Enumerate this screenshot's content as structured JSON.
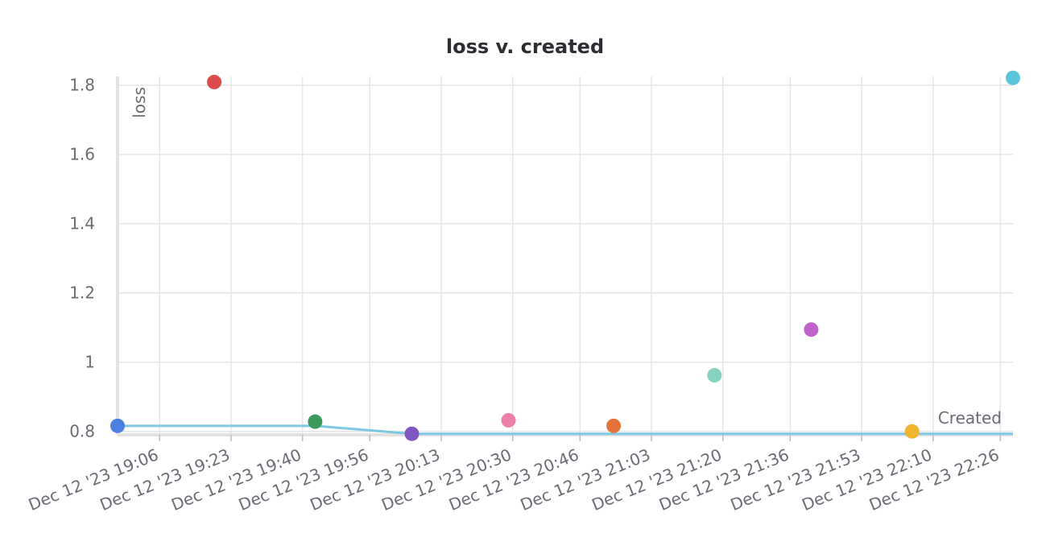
{
  "chart_data": {
    "type": "scatter",
    "title": "loss v. created",
    "xlabel": "Created",
    "ylabel": "loss",
    "x": [
      "2023-12-12T18:56",
      "2023-12-12T19:19",
      "2023-12-12T19:43",
      "2023-12-12T20:06",
      "2023-12-12T20:29",
      "2023-12-12T20:54",
      "2023-12-12T21:18",
      "2023-12-12T21:41",
      "2023-12-12T22:05",
      "2023-12-12T22:29"
    ],
    "values": [
      0.816,
      1.809,
      0.828,
      0.793,
      0.832,
      0.816,
      0.962,
      1.094,
      0.8,
      1.821
    ],
    "colors": [
      "#4c7fe0",
      "#dc4a4a",
      "#3d9a5d",
      "#7e57c2",
      "#ec7fa8",
      "#e3733a",
      "#87d1c0",
      "#c063cc",
      "#f0b62f",
      "#58c5d8"
    ],
    "line": {
      "color": "#7ec8e3",
      "x": [
        "2023-12-12T18:56",
        "2023-12-12T19:43",
        "2023-12-12T20:06",
        "2023-12-12T22:29"
      ],
      "values": [
        0.816,
        0.816,
        0.793,
        0.793
      ]
    },
    "xlim": [
      "2023-12-12T18:56",
      "2023-12-12T22:29"
    ],
    "xticks": [
      {
        "value": "2023-12-12T19:06",
        "label": "Dec 12 '23 19:06"
      },
      {
        "value": "2023-12-12T19:23",
        "label": "Dec 12 '23 19:23"
      },
      {
        "value": "2023-12-12T19:40",
        "label": "Dec 12 '23 19:40"
      },
      {
        "value": "2023-12-12T19:56",
        "label": "Dec 12 '23 19:56"
      },
      {
        "value": "2023-12-12T20:13",
        "label": "Dec 12 '23 20:13"
      },
      {
        "value": "2023-12-12T20:30",
        "label": "Dec 12 '23 20:30"
      },
      {
        "value": "2023-12-12T20:46",
        "label": "Dec 12 '23 20:46"
      },
      {
        "value": "2023-12-12T21:03",
        "label": "Dec 12 '23 21:03"
      },
      {
        "value": "2023-12-12T21:20",
        "label": "Dec 12 '23 21:20"
      },
      {
        "value": "2023-12-12T21:36",
        "label": "Dec 12 '23 21:36"
      },
      {
        "value": "2023-12-12T21:53",
        "label": "Dec 12 '23 21:53"
      },
      {
        "value": "2023-12-12T22:10",
        "label": "Dec 12 '23 22:10"
      },
      {
        "value": "2023-12-12T22:26",
        "label": "Dec 12 '23 22:26"
      }
    ],
    "ylim": [
      0.79,
      1.825
    ],
    "yticks": [
      0.8,
      1,
      1.2,
      1.4,
      1.6,
      1.8
    ],
    "grid": true
  }
}
